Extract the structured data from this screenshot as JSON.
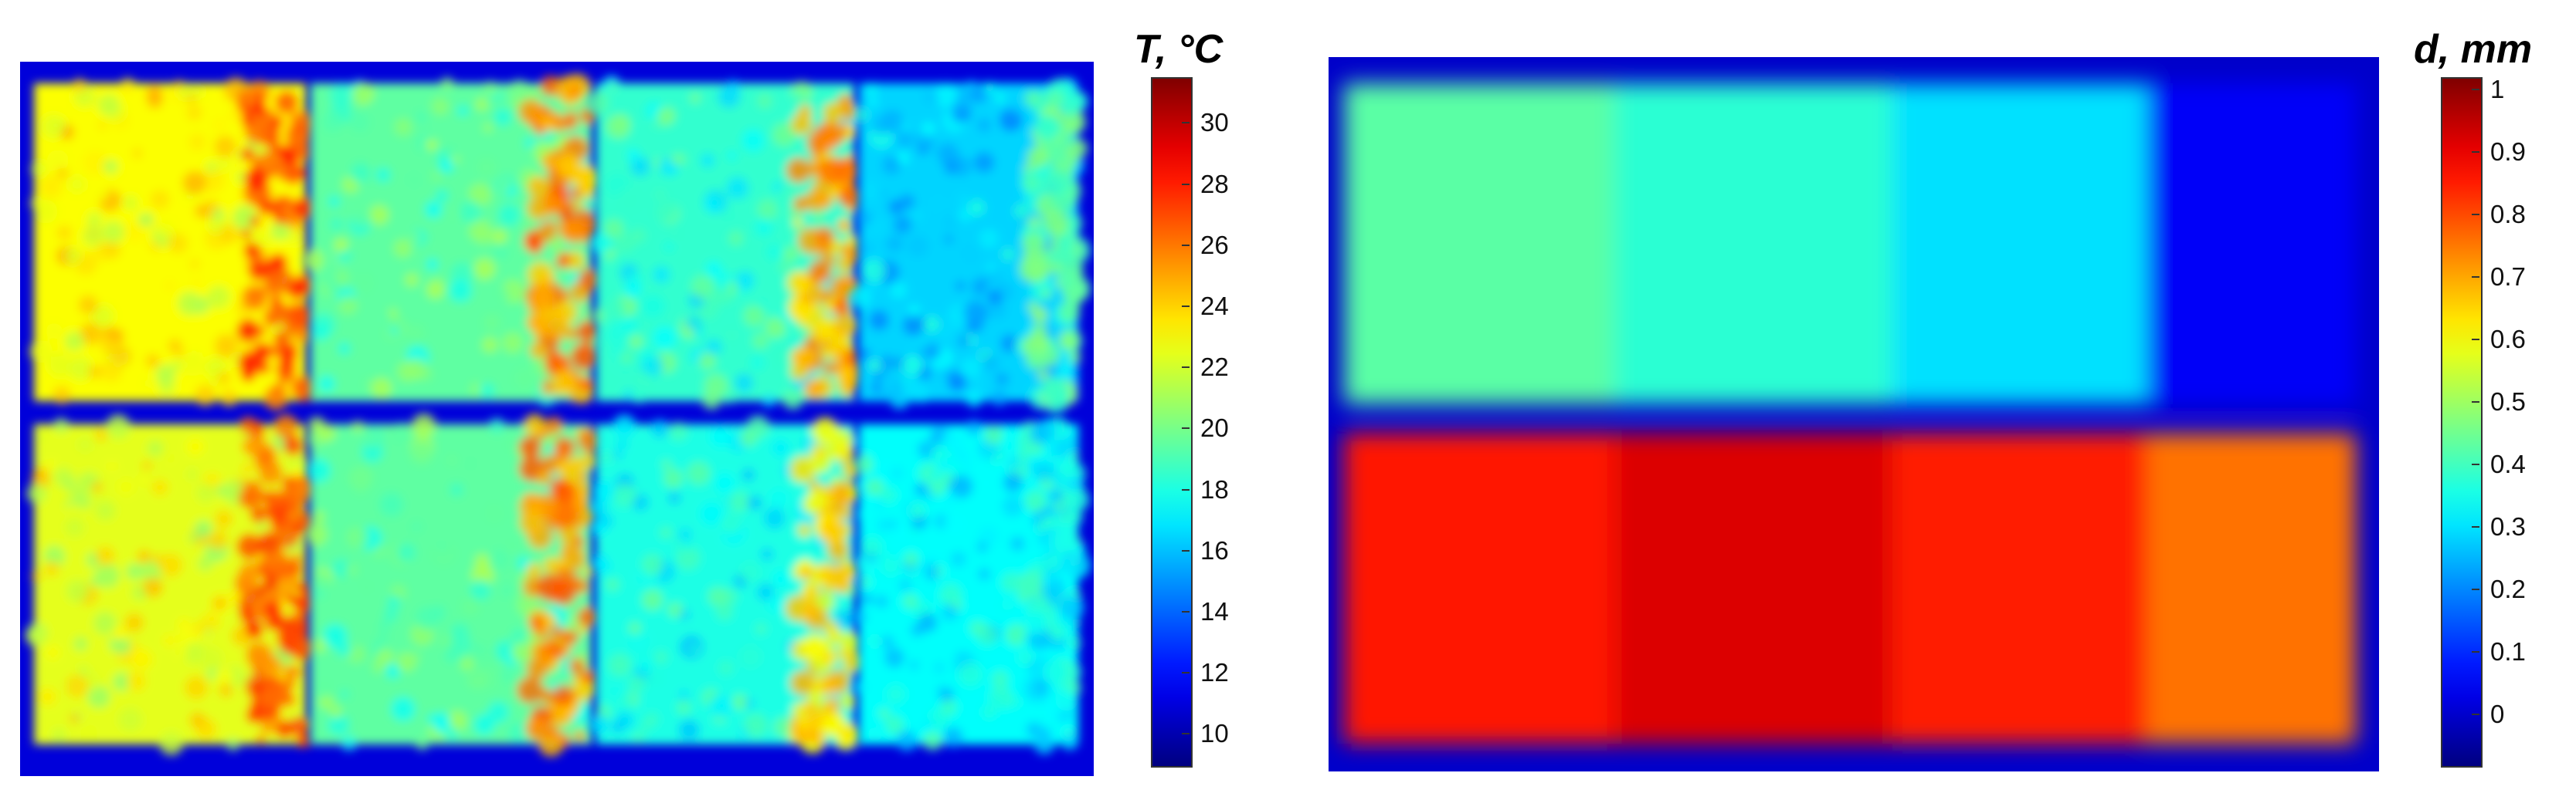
{
  "chart_data": [
    {
      "type": "heatmap",
      "colormap": "jet",
      "colorbar": {
        "title": "T, °C",
        "range": [
          9,
          31.5
        ],
        "ticks": [
          30,
          28,
          26,
          24,
          22,
          20,
          18,
          16,
          14,
          12,
          10
        ],
        "tick_labels": [
          "30",
          "28",
          "26",
          "24",
          "22",
          "20",
          "18",
          "16",
          "14",
          "12",
          "10"
        ]
      },
      "background_value": 11,
      "blocks": [
        {
          "row": 1,
          "col": 1,
          "base": 23,
          "hot": 28.5
        },
        {
          "row": 1,
          "col": 2,
          "base": 19.5,
          "hot": 27
        },
        {
          "row": 1,
          "col": 3,
          "base": 18.5,
          "hot": 26.5
        },
        {
          "row": 1,
          "col": 4,
          "base": 16.5,
          "hot": 21
        },
        {
          "row": 2,
          "col": 1,
          "base": 22.5,
          "hot": 28
        },
        {
          "row": 2,
          "col": 2,
          "base": 19.5,
          "hot": 27
        },
        {
          "row": 2,
          "col": 3,
          "base": 18,
          "hot": 25
        },
        {
          "row": 2,
          "col": 4,
          "base": 17.5,
          "hot": 19
        }
      ]
    },
    {
      "type": "heatmap",
      "colormap": "jet",
      "colorbar": {
        "title": "d, mm",
        "range": [
          -0.08,
          1.02
        ],
        "ticks": [
          1,
          0.9,
          0.8,
          0.7,
          0.6,
          0.5,
          0.4,
          0.3,
          0.2,
          0.1,
          0
        ],
        "tick_labels": [
          "1",
          "0.9",
          "0.8",
          "0.7",
          "0.6",
          "0.5",
          "0.4",
          "0.3",
          "0.2",
          "0.1",
          "0"
        ]
      },
      "background_value": 0.0,
      "blocks": [
        {
          "row": 1,
          "col": 1,
          "value": 0.43
        },
        {
          "row": 1,
          "col": 2,
          "value": 0.38
        },
        {
          "row": 1,
          "col": 3,
          "value": 0.3
        },
        {
          "row": 1,
          "col": 4,
          "value": 0.05
        },
        {
          "row": 2,
          "col": 1,
          "value": 0.86
        },
        {
          "row": 2,
          "col": 2,
          "value": 0.92
        },
        {
          "row": 2,
          "col": 3,
          "value": 0.85
        },
        {
          "row": 2,
          "col": 4,
          "value": 0.76
        }
      ]
    }
  ]
}
